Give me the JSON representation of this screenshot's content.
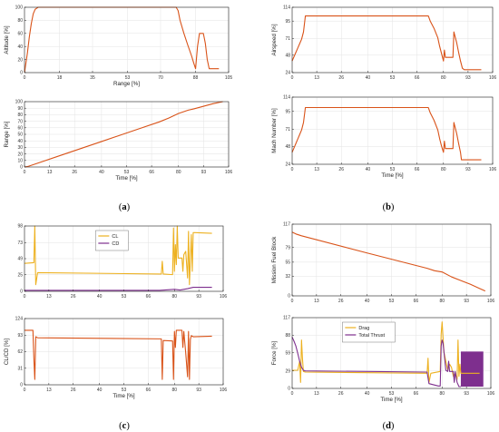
{
  "colors": {
    "orange": "#D95319",
    "yellow": "#EDB120",
    "purple": "#7E2F8E",
    "grid": "#E3E3E3",
    "axis": "#262626"
  },
  "subfigures": [
    "a",
    "b",
    "c",
    "d"
  ],
  "chart_data": [
    {
      "id": "a-top",
      "type": "line",
      "xlabel": "Range [%]",
      "ylabel": "Altitude [%]",
      "xlim": [
        0,
        105
      ],
      "ylim": [
        0,
        100
      ],
      "xticks": [
        0,
        18,
        35,
        53,
        70,
        88,
        105
      ],
      "xtick_labels": [
        "0",
        "18",
        "35",
        "53",
        "70",
        "88",
        "105"
      ],
      "yticks": [
        0,
        20,
        40,
        60,
        80,
        100
      ],
      "ytick_labels": [
        "0",
        "20",
        "40",
        "60",
        "80",
        "100"
      ],
      "series": [
        {
          "color": "orange",
          "x": [
            0,
            0.5,
            1.5,
            2.5,
            3.5,
            4.5,
            5.5,
            7,
            78,
            79,
            80,
            82,
            84,
            86,
            87,
            88,
            89,
            90,
            91,
            92,
            93,
            94,
            95,
            96,
            97,
            100
          ],
          "y": [
            0,
            10,
            30,
            55,
            75,
            90,
            97,
            100,
            100,
            95,
            80,
            60,
            42,
            25,
            15,
            6,
            40,
            60,
            60,
            60,
            45,
            20,
            6,
            6,
            6,
            6
          ]
        }
      ]
    },
    {
      "id": "a-bottom",
      "type": "line",
      "xlabel": "Time [%]",
      "ylabel": "Range [%]",
      "xlim": [
        0,
        106
      ],
      "ylim": [
        0,
        100
      ],
      "xticks": [
        0,
        13,
        26,
        40,
        53,
        66,
        80,
        93,
        106
      ],
      "xtick_labels": [
        "0",
        "13",
        "26",
        "40",
        "53",
        "66",
        "80",
        "93",
        "106"
      ],
      "yticks": [
        0,
        10,
        20,
        30,
        40,
        50,
        60,
        70,
        80,
        90,
        100
      ],
      "ytick_labels": [
        "0",
        "10",
        "20",
        "30",
        "40",
        "50",
        "60",
        "70",
        "80",
        "90",
        "100"
      ],
      "series": [
        {
          "color": "orange",
          "x": [
            0,
            2,
            5,
            20,
            40,
            60,
            70,
            75,
            80,
            85,
            88,
            93,
            98,
            103
          ],
          "y": [
            0,
            1,
            4,
            19,
            39,
            59,
            69,
            75,
            82,
            87,
            89,
            93,
            97,
            100
          ]
        }
      ]
    },
    {
      "id": "b-top",
      "type": "line",
      "xlabel": "",
      "ylabel": "Airspeed [%]",
      "xlim": [
        0,
        106
      ],
      "ylim": [
        24,
        114
      ],
      "xticks": [
        0,
        13,
        26,
        40,
        53,
        66,
        80,
        93,
        106
      ],
      "xtick_labels": [
        "0",
        "13",
        "26",
        "40",
        "53",
        "66",
        "80",
        "93",
        "106"
      ],
      "yticks": [
        24,
        48,
        71,
        95,
        114
      ],
      "ytick_labels": [
        "24",
        "48",
        "71",
        "95",
        "114"
      ],
      "series": [
        {
          "color": "orange",
          "x": [
            0,
            1,
            2,
            3,
            4,
            5,
            6,
            7,
            72,
            73,
            75,
            77,
            78,
            79,
            80,
            80.5,
            81,
            81.5,
            83,
            85,
            85.5,
            86,
            87,
            88,
            89,
            90,
            91,
            92,
            100
          ],
          "y": [
            40,
            46,
            52,
            58,
            64,
            70,
            80,
            102,
            102,
            95,
            85,
            72,
            60,
            50,
            40,
            55,
            45,
            45,
            45,
            45,
            80,
            75,
            65,
            52,
            40,
            30,
            28,
            28,
            28
          ]
        }
      ]
    },
    {
      "id": "b-bottom",
      "type": "line",
      "xlabel": "Time [%]",
      "ylabel": "Mach Number [%]",
      "xlim": [
        0,
        106
      ],
      "ylim": [
        24,
        114
      ],
      "xticks": [
        0,
        13,
        26,
        40,
        53,
        66,
        80,
        93,
        106
      ],
      "xtick_labels": [
        "0",
        "13",
        "26",
        "40",
        "53",
        "66",
        "80",
        "93",
        "106"
      ],
      "yticks": [
        24,
        48,
        71,
        95,
        114
      ],
      "ytick_labels": [
        "24",
        "48",
        "71",
        "95",
        "114"
      ],
      "series": [
        {
          "color": "orange",
          "x": [
            0,
            1,
            2,
            3,
            4,
            5,
            6,
            7,
            72,
            73,
            75,
            77,
            78,
            79,
            80,
            80.5,
            81,
            81.5,
            83,
            85,
            85.5,
            86,
            87,
            88,
            89,
            89.5,
            90,
            92,
            100
          ],
          "y": [
            40,
            46,
            52,
            58,
            64,
            70,
            80,
            100,
            100,
            93,
            83,
            70,
            58,
            48,
            40,
            55,
            45,
            45,
            45,
            45,
            80,
            75,
            65,
            52,
            40,
            30,
            30,
            30,
            30
          ]
        }
      ]
    },
    {
      "id": "c-top",
      "type": "line",
      "xlabel": "",
      "ylabel": "",
      "xlim": [
        0,
        106
      ],
      "ylim": [
        0,
        98
      ],
      "xticks": [
        0,
        13,
        26,
        40,
        53,
        66,
        80,
        93,
        106
      ],
      "xtick_labels": [
        "0",
        "13",
        "26",
        "40",
        "53",
        "66",
        "80",
        "93",
        "106"
      ],
      "yticks": [
        0,
        25,
        49,
        73,
        98
      ],
      "ytick_labels": [
        "0",
        "25",
        "49",
        "73",
        "98"
      ],
      "legend_position": "upper-center",
      "series": [
        {
          "name": "CL",
          "color": "yellow",
          "x": [
            0,
            5,
            5.5,
            6,
            7,
            72,
            73,
            73.5,
            74,
            79,
            79.5,
            80,
            80.5,
            81,
            81.5,
            82,
            84,
            84.5,
            85,
            86,
            87,
            87.5,
            88,
            89,
            89.5,
            90,
            91,
            100
          ],
          "y": [
            42,
            43,
            98,
            10,
            28,
            26,
            26,
            45,
            26,
            25,
            95,
            30,
            70,
            40,
            98,
            50,
            50,
            30,
            55,
            60,
            20,
            90,
            10,
            85,
            30,
            88,
            88,
            87
          ]
        },
        {
          "name": "CD",
          "color": "purple",
          "x": [
            0,
            72,
            80,
            83,
            87,
            90,
            100
          ],
          "y": [
            1.5,
            1.5,
            3,
            2,
            4,
            6,
            6
          ]
        }
      ]
    },
    {
      "id": "c-bottom",
      "type": "line",
      "xlabel": "Time [%]",
      "ylabel": "CL/CD [%]",
      "xlim": [
        0,
        106
      ],
      "ylim": [
        0,
        124
      ],
      "xticks": [
        0,
        13,
        26,
        40,
        53,
        66,
        80,
        93,
        106
      ],
      "xtick_labels": [
        "0",
        "13",
        "26",
        "40",
        "53",
        "66",
        "80",
        "93",
        "106"
      ],
      "yticks": [
        0,
        31,
        62,
        93,
        124
      ],
      "ytick_labels": [
        "0",
        "31",
        "62",
        "93",
        "124"
      ],
      "series": [
        {
          "color": "orange",
          "x": [
            0,
            4.5,
            5,
            5.5,
            6,
            7,
            72,
            73,
            73.5,
            74,
            79,
            79.5,
            80,
            80.5,
            81,
            82,
            84,
            84.5,
            85,
            86,
            87,
            87.5,
            88,
            88.5,
            89,
            90,
            100
          ],
          "y": [
            102,
            102,
            50,
            10,
            90,
            88,
            86,
            86,
            10,
            83,
            82,
            10,
            100,
            70,
            102,
            102,
            102,
            70,
            100,
            60,
            15,
            100,
            10,
            85,
            92,
            90,
            91
          ]
        }
      ]
    },
    {
      "id": "d-top",
      "type": "line",
      "xlabel": "",
      "ylabel": "Mission Fuel Block",
      "xlim": [
        0,
        106
      ],
      "ylim": [
        0,
        117
      ],
      "xticks": [
        0,
        13,
        26,
        40,
        53,
        66,
        80,
        93,
        106
      ],
      "xtick_labels": [
        "0",
        "13",
        "26",
        "40",
        "53",
        "66",
        "80",
        "93",
        "106"
      ],
      "yticks": [
        0,
        32,
        55,
        79,
        117
      ],
      "ytick_labels": [
        "0",
        "32",
        "55",
        "79",
        "117"
      ],
      "series": [
        {
          "color": "orange",
          "x": [
            0,
            2,
            5,
            40,
            72,
            76,
            80,
            85,
            90,
            95,
            100,
            103
          ],
          "y": [
            104,
            101,
            98,
            70,
            45,
            41,
            39,
            31,
            25,
            19,
            12,
            8
          ]
        }
      ]
    },
    {
      "id": "d-bottom",
      "type": "line",
      "xlabel": "Time [%]",
      "ylabel": "Force [%]",
      "xlim": [
        0,
        106
      ],
      "ylim": [
        0,
        117
      ],
      "xticks": [
        0,
        13,
        26,
        40,
        53,
        66,
        80,
        93,
        106
      ],
      "xtick_labels": [
        "0",
        "13",
        "26",
        "40",
        "53",
        "66",
        "80",
        "93",
        "106"
      ],
      "yticks": [
        0,
        29,
        59,
        88,
        117
      ],
      "ytick_labels": [
        "0",
        "29",
        "59",
        "88",
        "117"
      ],
      "legend_position": "upper-center",
      "series": [
        {
          "name": "Drag",
          "color": "yellow",
          "x": [
            0,
            3,
            4,
            4.5,
            5,
            5.5,
            6,
            7,
            72,
            72.5,
            73,
            74,
            79,
            79.5,
            80,
            81,
            83,
            84,
            85,
            86,
            87,
            88,
            88.5,
            89,
            89.5,
            90,
            100
          ],
          "y": [
            30,
            30,
            45,
            10,
            80,
            50,
            28,
            27,
            25,
            50,
            10,
            25,
            28,
            90,
            110,
            60,
            30,
            40,
            35,
            20,
            25,
            15,
            80,
            20,
            40,
            25,
            25
          ]
        },
        {
          "name": "Total Thrust",
          "color": "purple",
          "x": [
            0,
            1,
            2,
            3,
            4,
            5,
            6,
            7,
            72,
            73,
            78,
            79,
            79.5,
            80,
            80.5,
            81,
            82,
            83,
            83.5,
            84,
            86,
            86.5,
            87,
            88,
            89,
            90
          ],
          "y": [
            85,
            78,
            70,
            58,
            45,
            35,
            30,
            29,
            27,
            8,
            4,
            4,
            70,
            80,
            75,
            60,
            30,
            28,
            45,
            28,
            28,
            10,
            28,
            10,
            3,
            3
          ]
        }
      ],
      "filled_band": {
        "series": "Total Thrust",
        "x_range": [
          90,
          102
        ],
        "y_range": [
          3,
          61
        ]
      }
    }
  ]
}
